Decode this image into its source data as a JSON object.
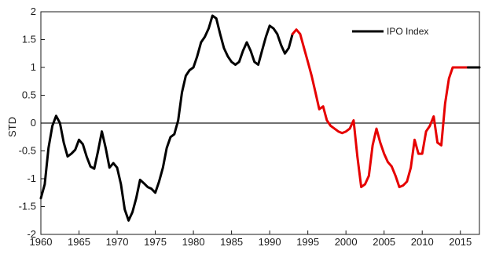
{
  "chart_data": {
    "type": "line",
    "title": "",
    "xlabel": "",
    "ylabel": "STD",
    "xlim": [
      1960,
      2017.5
    ],
    "ylim": [
      -2,
      2
    ],
    "xticks": [
      1960,
      1965,
      1970,
      1975,
      1980,
      1985,
      1990,
      1995,
      2000,
      2005,
      2010,
      2015
    ],
    "yticks": [
      -2,
      -1.5,
      -1,
      -0.5,
      0,
      0.5,
      1,
      1.5,
      2
    ],
    "ytick_labels": [
      "-2",
      "-1.5",
      "-1",
      "-0.5",
      "0",
      "0.5",
      "1",
      "1.5",
      "2"
    ],
    "grid": false,
    "reference_line": 0,
    "legend": {
      "position": "top-right",
      "label": "IPO Index"
    },
    "colors": {
      "primary": "#000000",
      "highlight": "#e60000",
      "axis": "#1a1a1a"
    },
    "highlight_range": [
      1993.0,
      2016.0
    ],
    "series": [
      {
        "name": "IPO Index",
        "x": [
          1960.0,
          1960.5,
          1961.0,
          1961.5,
          1962.0,
          1962.5,
          1963.0,
          1963.5,
          1964.0,
          1964.5,
          1965.0,
          1965.5,
          1966.0,
          1966.5,
          1967.0,
          1967.5,
          1968.0,
          1968.5,
          1969.0,
          1969.5,
          1970.0,
          1970.5,
          1971.0,
          1971.5,
          1972.0,
          1972.5,
          1973.0,
          1973.5,
          1974.0,
          1974.5,
          1975.0,
          1975.5,
          1976.0,
          1976.5,
          1977.0,
          1977.5,
          1978.0,
          1978.5,
          1979.0,
          1979.5,
          1980.0,
          1980.5,
          1981.0,
          1981.5,
          1982.0,
          1982.5,
          1983.0,
          1983.5,
          1984.0,
          1984.5,
          1985.0,
          1985.5,
          1986.0,
          1986.5,
          1987.0,
          1987.5,
          1988.0,
          1988.5,
          1989.0,
          1989.5,
          1990.0,
          1990.5,
          1991.0,
          1991.5,
          1992.0,
          1992.5,
          1993.0,
          1993.5,
          1994.0,
          1994.5,
          1995.0,
          1995.5,
          1996.0,
          1996.5,
          1997.0,
          1997.5,
          1998.0,
          1998.5,
          1999.0,
          1999.5,
          2000.0,
          2000.5,
          2001.0,
          2001.5,
          2002.0,
          2002.5,
          2003.0,
          2003.5,
          2004.0,
          2004.5,
          2005.0,
          2005.5,
          2006.0,
          2006.5,
          2007.0,
          2007.5,
          2008.0,
          2008.5,
          2009.0,
          2009.5,
          2010.0,
          2010.5,
          2011.0,
          2011.5,
          2012.0,
          2012.5,
          2013.0,
          2013.5,
          2014.0,
          2014.5,
          2015.0,
          2015.5,
          2016.0,
          2016.5,
          2017.0,
          2017.5
        ],
        "y": [
          -1.35,
          -1.1,
          -0.45,
          -0.05,
          0.13,
          0.0,
          -0.35,
          -0.6,
          -0.55,
          -0.48,
          -0.3,
          -0.38,
          -0.6,
          -0.78,
          -0.82,
          -0.5,
          -0.15,
          -0.45,
          -0.8,
          -0.72,
          -0.8,
          -1.1,
          -1.55,
          -1.75,
          -1.6,
          -1.35,
          -1.02,
          -1.08,
          -1.15,
          -1.18,
          -1.25,
          -1.05,
          -0.8,
          -0.45,
          -0.25,
          -0.2,
          0.05,
          0.55,
          0.85,
          0.95,
          1.0,
          1.2,
          1.45,
          1.55,
          1.7,
          1.93,
          1.88,
          1.6,
          1.35,
          1.2,
          1.1,
          1.05,
          1.1,
          1.3,
          1.45,
          1.3,
          1.1,
          1.05,
          1.3,
          1.55,
          1.75,
          1.7,
          1.6,
          1.4,
          1.25,
          1.35,
          1.6,
          1.68,
          1.6,
          1.35,
          1.1,
          0.85,
          0.55,
          0.25,
          0.3,
          0.05,
          -0.05,
          -0.1,
          -0.15,
          -0.18,
          -0.15,
          -0.1,
          0.05,
          -0.6,
          -1.15,
          -1.1,
          -0.95,
          -0.4,
          -0.1,
          -0.35,
          -0.55,
          -0.7,
          -0.78,
          -0.95,
          -1.15,
          -1.12,
          -1.05,
          -0.8,
          -0.3,
          -0.55,
          -0.55,
          -0.15,
          -0.05,
          0.12,
          -0.35,
          -0.4,
          0.35,
          0.8,
          1.0,
          1.0,
          1.0,
          1.0,
          1.0,
          1.0,
          1.0,
          1.0
        ]
      }
    ]
  }
}
